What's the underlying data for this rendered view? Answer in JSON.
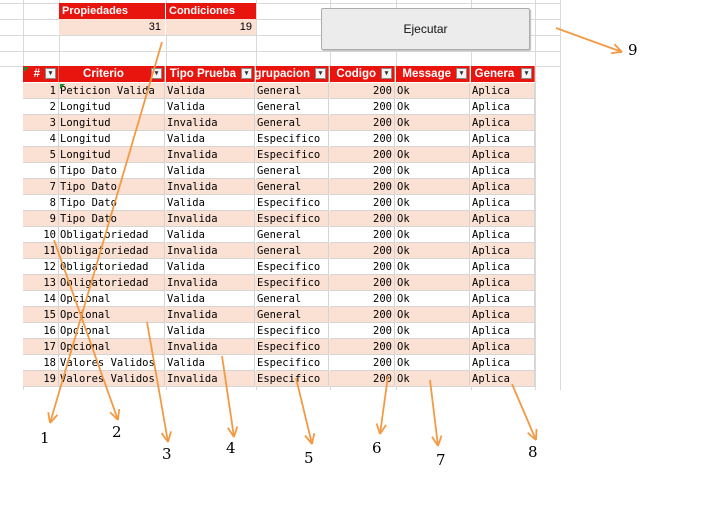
{
  "summary": {
    "properties_label": "Propiedades",
    "conditions_label": "Condiciones",
    "properties_value": "31",
    "conditions_value": "19"
  },
  "run_button": {
    "label": "Ejecutar"
  },
  "table": {
    "headers": [
      "#",
      "Criterio",
      "Tipo Prueba",
      "Agrupacion",
      "Codigo",
      "Message",
      "Genera"
    ],
    "rows": [
      [
        "1",
        "Peticion Valida",
        "Valida",
        "General",
        "200",
        "Ok",
        "Aplica"
      ],
      [
        "2",
        "Longitud",
        "Valida",
        "General",
        "200",
        "Ok",
        "Aplica"
      ],
      [
        "3",
        "Longitud",
        "Invalida",
        "General",
        "200",
        "Ok",
        "Aplica"
      ],
      [
        "4",
        "Longitud",
        "Valida",
        "Especifico",
        "200",
        "Ok",
        "Aplica"
      ],
      [
        "5",
        "Longitud",
        "Invalida",
        "Especifico",
        "200",
        "Ok",
        "Aplica"
      ],
      [
        "6",
        "Tipo Dato",
        "Valida",
        "General",
        "200",
        "Ok",
        "Aplica"
      ],
      [
        "7",
        "Tipo Dato",
        "Invalida",
        "General",
        "200",
        "Ok",
        "Aplica"
      ],
      [
        "8",
        "Tipo Dato",
        "Valida",
        "Especifico",
        "200",
        "Ok",
        "Aplica"
      ],
      [
        "9",
        "Tipo Dato",
        "Invalida",
        "Especifico",
        "200",
        "Ok",
        "Aplica"
      ],
      [
        "10",
        "Obligatoriedad",
        "Valida",
        "General",
        "200",
        "Ok",
        "Aplica"
      ],
      [
        "11",
        "Obligatoriedad",
        "Invalida",
        "General",
        "200",
        "Ok",
        "Aplica"
      ],
      [
        "12",
        "Obligatoriedad",
        "Valida",
        "Especifico",
        "200",
        "Ok",
        "Aplica"
      ],
      [
        "13",
        "Obligatoriedad",
        "Invalida",
        "Especifico",
        "200",
        "Ok",
        "Aplica"
      ],
      [
        "14",
        "Opcional",
        "Valida",
        "General",
        "200",
        "Ok",
        "Aplica"
      ],
      [
        "15",
        "Opcional",
        "Invalida",
        "General",
        "200",
        "Ok",
        "Aplica"
      ],
      [
        "16",
        "Opcional",
        "Valida",
        "Especifico",
        "200",
        "Ok",
        "Aplica"
      ],
      [
        "17",
        "Opcional",
        "Invalida",
        "Especifico",
        "200",
        "Ok",
        "Aplica"
      ],
      [
        "18",
        "Valores Validos",
        "Valida",
        "Especifico",
        "200",
        "Ok",
        "Aplica"
      ],
      [
        "19",
        "Valores Validos",
        "Invalida",
        "Especifico",
        "200",
        "Ok",
        "Aplica"
      ]
    ]
  },
  "annotations": [
    "1",
    "2",
    "3",
    "4",
    "5",
    "6",
    "7",
    "8",
    "9"
  ],
  "colors": {
    "header_red": "#e8140e",
    "band_peach": "#fbe0d4",
    "arrow_orange": "#f39a45"
  },
  "icons": {
    "filter": "filter-dropdown-icon",
    "arrow": "annotation-arrow"
  }
}
